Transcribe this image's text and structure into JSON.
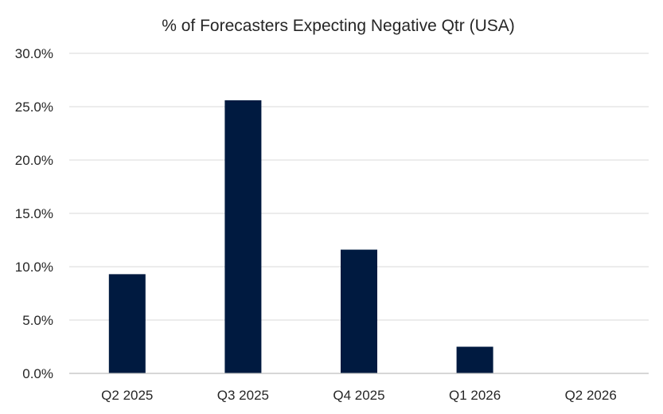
{
  "chart_data": {
    "type": "bar",
    "title": "% of Forecasters Expecting Negative Qtr (USA)",
    "xlabel": "",
    "ylabel": "",
    "categories": [
      "Q2 2025",
      "Q3 2025",
      "Q4 2025",
      "Q1 2026",
      "Q2 2026"
    ],
    "values": [
      9.3,
      25.6,
      11.6,
      2.5,
      0.0
    ],
    "ylim": [
      0,
      30
    ],
    "yticks": [
      "0.0%",
      "5.0%",
      "10.0%",
      "15.0%",
      "20.0%",
      "25.0%",
      "30.0%"
    ],
    "grid": true,
    "legend": "none",
    "bar_color": "#001a40"
  }
}
